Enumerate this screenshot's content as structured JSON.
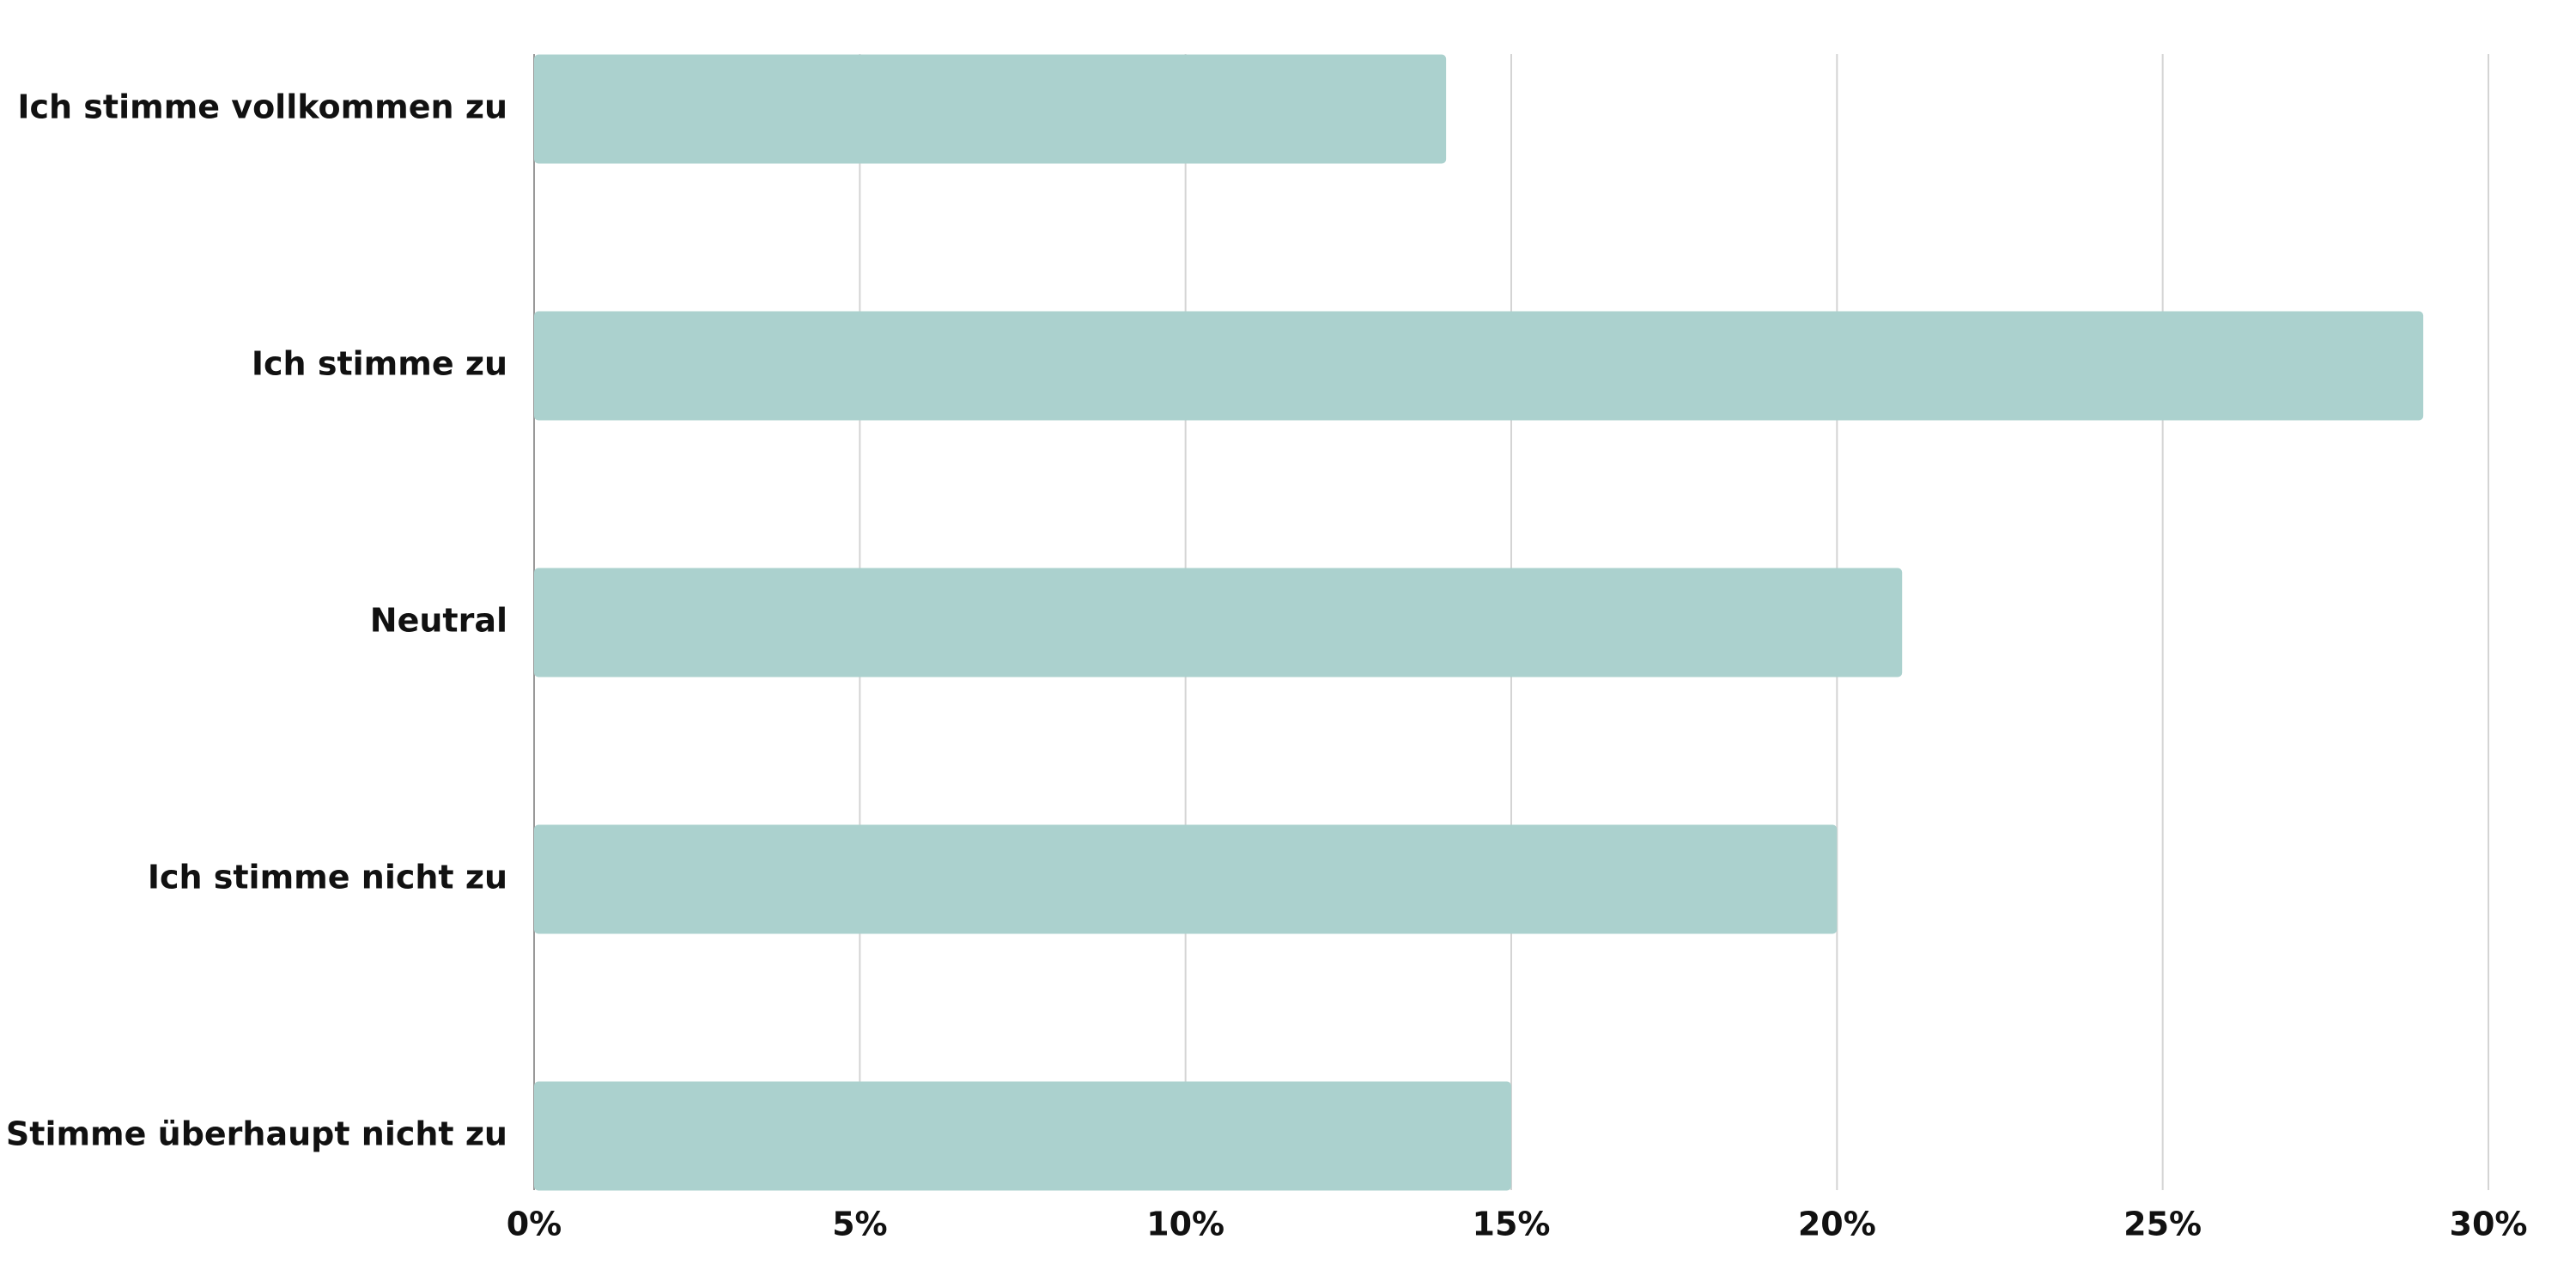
{
  "chart_data": {
    "type": "bar",
    "orientation": "horizontal",
    "categories": [
      "Ich stimme vollkommen zu",
      "Ich stimme zu",
      "Neutral",
      "Ich stimme nicht zu",
      "Stimme überhaupt nicht zu"
    ],
    "values": [
      14,
      29,
      21,
      20,
      15
    ],
    "color": "#abd1ce",
    "xlim": [
      0,
      30
    ],
    "xticks": [
      {
        "value": 0,
        "label": "0%"
      },
      {
        "value": 5,
        "label": "5%"
      },
      {
        "value": 10,
        "label": "10%"
      },
      {
        "value": 15,
        "label": "15%"
      },
      {
        "value": 20,
        "label": "20%"
      },
      {
        "value": 25,
        "label": "25%"
      },
      {
        "value": 30,
        "label": "30%"
      }
    ],
    "grid": true
  }
}
